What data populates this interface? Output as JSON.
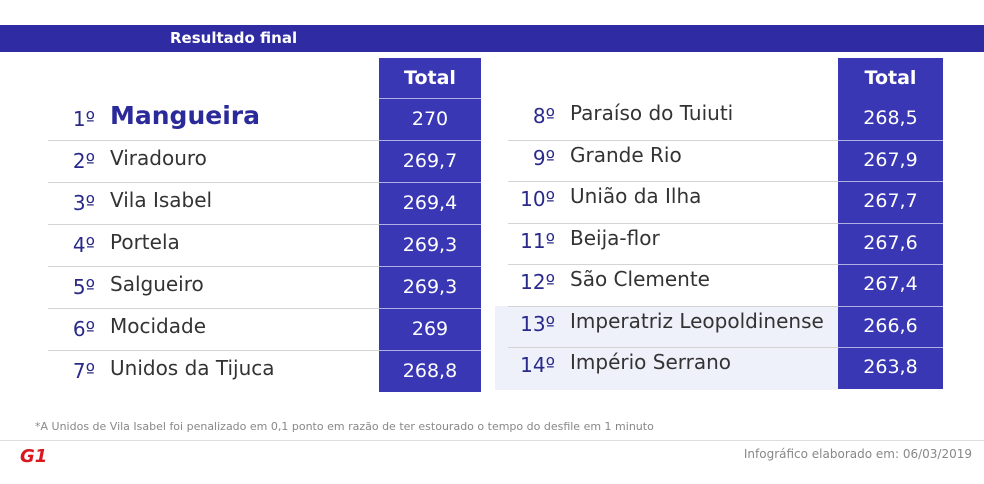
{
  "header": {
    "title": "Resultado final"
  },
  "tables": [
    {
      "total_header": "Total",
      "rows": [
        {
          "rank": "1º",
          "name": "Mangueira",
          "total": "270"
        },
        {
          "rank": "2º",
          "name": "Viradouro",
          "total": "269,7"
        },
        {
          "rank": "3º",
          "name": "Vila Isabel",
          "total": "269,4"
        },
        {
          "rank": "4º",
          "name": "Portela",
          "total": "269,3"
        },
        {
          "rank": "5º",
          "name": "Salgueiro",
          "total": "269,3"
        },
        {
          "rank": "6º",
          "name": "Mocidade",
          "total": "269"
        },
        {
          "rank": "7º",
          "name": "Unidos da Tijuca",
          "total": "268,8"
        }
      ]
    },
    {
      "total_header": "Total",
      "rows": [
        {
          "rank": "8º",
          "name": "Paraíso do Tuiuti",
          "total": "268,5"
        },
        {
          "rank": "9º",
          "name": "Grande Rio",
          "total": "267,9"
        },
        {
          "rank": "10º",
          "name": "União da Ilha",
          "total": "267,7"
        },
        {
          "rank": "11º",
          "name": "Beija-flor",
          "total": "267,6"
        },
        {
          "rank": "12º",
          "name": "São Clemente",
          "total": "267,4"
        },
        {
          "rank": "13º",
          "name": "Imperatriz Leopoldinense",
          "total": "266,6"
        },
        {
          "rank": "14º",
          "name": "Império Serrano",
          "total": "263,8"
        }
      ]
    }
  ],
  "footnote": "*A Unidos de Vila Isabel foi penalizado em 0,1 ponto em razão de ter estourado o tempo do desfile em 1 minuto",
  "logo": "G1",
  "credit": "Infográfico elaborado em: 06/03/2019"
}
